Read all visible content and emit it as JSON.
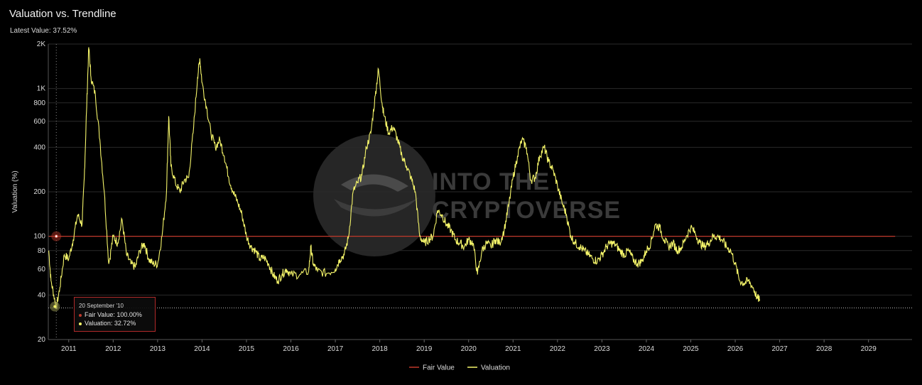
{
  "header": {
    "title": "Valuation vs. Trendline",
    "latest_value": "Latest Value: 37.52%"
  },
  "watermark": {
    "line1": "INTO THE",
    "line2": "CRYPTOVERSE"
  },
  "tooltip": {
    "date": "20 September '10",
    "fair_value": "Fair Value: 100.00%",
    "valuation": "Valuation: 32.72%"
  },
  "colors": {
    "background": "#000000",
    "fair_value": "#c0392b",
    "valuation": "#f5f56a",
    "grid": "#2a2a2a",
    "tooltip_border": "#b02a2a"
  },
  "chart_data": {
    "type": "line",
    "title": "Valuation vs. Trendline",
    "ylabel": "Valuation (%)",
    "xlabel": "",
    "yscale": "log",
    "ylim": [
      20,
      2000
    ],
    "xlim": [
      "2010-07-15",
      "2029-12-31"
    ],
    "y_ticks": [
      20,
      40,
      60,
      80,
      100,
      200,
      400,
      600,
      800,
      1000,
      2000
    ],
    "y_tick_labels": [
      "20",
      "40",
      "60",
      "80",
      "100",
      "200",
      "400",
      "600",
      "800",
      "1K",
      "2K"
    ],
    "x_ticks": [
      "2011",
      "2012",
      "2013",
      "2014",
      "2015",
      "2016",
      "2017",
      "2018",
      "2019",
      "2020",
      "2021",
      "2022",
      "2023",
      "2024",
      "2025",
      "2026",
      "2027",
      "2028",
      "2029"
    ],
    "grid": true,
    "legend_position": "bottom-center",
    "crosshair": {
      "date": "2010-09-20",
      "valuation": 32.72
    },
    "series": [
      {
        "name": "Fair Value",
        "color": "#c0392b",
        "values": [
          [
            2010.55,
            100
          ],
          [
            2029.6,
            100
          ]
        ]
      },
      {
        "name": "Valuation",
        "color": "#f5f56a",
        "values": [
          [
            2010.55,
            80
          ],
          [
            2010.6,
            50
          ],
          [
            2010.68,
            38
          ],
          [
            2010.72,
            32.7
          ],
          [
            2010.8,
            45
          ],
          [
            2010.9,
            75
          ],
          [
            2011.0,
            70
          ],
          [
            2011.1,
            95
          ],
          [
            2011.2,
            140
          ],
          [
            2011.3,
            120
          ],
          [
            2011.35,
            250
          ],
          [
            2011.4,
            700
          ],
          [
            2011.45,
            1900
          ],
          [
            2011.5,
            1200
          ],
          [
            2011.6,
            900
          ],
          [
            2011.7,
            450
          ],
          [
            2011.8,
            200
          ],
          [
            2011.9,
            65
          ],
          [
            2012.0,
            100
          ],
          [
            2012.1,
            90
          ],
          [
            2012.2,
            130
          ],
          [
            2012.3,
            75
          ],
          [
            2012.4,
            65
          ],
          [
            2012.5,
            62
          ],
          [
            2012.6,
            80
          ],
          [
            2012.7,
            90
          ],
          [
            2012.8,
            70
          ],
          [
            2012.9,
            65
          ],
          [
            2013.0,
            65
          ],
          [
            2013.1,
            100
          ],
          [
            2013.2,
            200
          ],
          [
            2013.25,
            650
          ],
          [
            2013.3,
            300
          ],
          [
            2013.4,
            230
          ],
          [
            2013.5,
            200
          ],
          [
            2013.6,
            240
          ],
          [
            2013.7,
            250
          ],
          [
            2013.8,
            500
          ],
          [
            2013.9,
            1200
          ],
          [
            2013.95,
            1600
          ],
          [
            2014.0,
            1100
          ],
          [
            2014.1,
            750
          ],
          [
            2014.2,
            500
          ],
          [
            2014.3,
            400
          ],
          [
            2014.4,
            450
          ],
          [
            2014.5,
            350
          ],
          [
            2014.6,
            250
          ],
          [
            2014.7,
            200
          ],
          [
            2014.8,
            170
          ],
          [
            2014.9,
            140
          ],
          [
            2015.0,
            100
          ],
          [
            2015.1,
            85
          ],
          [
            2015.2,
            80
          ],
          [
            2015.3,
            70
          ],
          [
            2015.4,
            72
          ],
          [
            2015.5,
            65
          ],
          [
            2015.6,
            55
          ],
          [
            2015.7,
            50
          ],
          [
            2015.8,
            55
          ],
          [
            2015.9,
            60
          ],
          [
            2016.0,
            55
          ],
          [
            2016.2,
            55
          ],
          [
            2016.4,
            58
          ],
          [
            2016.45,
            85
          ],
          [
            2016.5,
            65
          ],
          [
            2016.6,
            58
          ],
          [
            2016.8,
            56
          ],
          [
            2017.0,
            60
          ],
          [
            2017.1,
            70
          ],
          [
            2017.2,
            75
          ],
          [
            2017.3,
            100
          ],
          [
            2017.4,
            200
          ],
          [
            2017.5,
            230
          ],
          [
            2017.6,
            260
          ],
          [
            2017.7,
            400
          ],
          [
            2017.8,
            500
          ],
          [
            2017.9,
            900
          ],
          [
            2017.97,
            1350
          ],
          [
            2018.05,
            800
          ],
          [
            2018.1,
            650
          ],
          [
            2018.2,
            500
          ],
          [
            2018.3,
            550
          ],
          [
            2018.4,
            450
          ],
          [
            2018.5,
            350
          ],
          [
            2018.6,
            300
          ],
          [
            2018.7,
            250
          ],
          [
            2018.8,
            200
          ],
          [
            2018.9,
            100
          ],
          [
            2019.0,
            90
          ],
          [
            2019.1,
            95
          ],
          [
            2019.2,
            100
          ],
          [
            2019.3,
            150
          ],
          [
            2019.4,
            140
          ],
          [
            2019.5,
            120
          ],
          [
            2019.6,
            110
          ],
          [
            2019.7,
            95
          ],
          [
            2019.8,
            90
          ],
          [
            2019.9,
            85
          ],
          [
            2020.0,
            95
          ],
          [
            2020.1,
            90
          ],
          [
            2020.2,
            55
          ],
          [
            2020.3,
            80
          ],
          [
            2020.4,
            90
          ],
          [
            2020.5,
            85
          ],
          [
            2020.6,
            95
          ],
          [
            2020.7,
            90
          ],
          [
            2020.8,
            110
          ],
          [
            2020.9,
            160
          ],
          [
            2021.0,
            250
          ],
          [
            2021.1,
            350
          ],
          [
            2021.2,
            450
          ],
          [
            2021.3,
            400
          ],
          [
            2021.4,
            240
          ],
          [
            2021.5,
            250
          ],
          [
            2021.6,
            350
          ],
          [
            2021.7,
            400
          ],
          [
            2021.8,
            320
          ],
          [
            2021.9,
            280
          ],
          [
            2022.0,
            220
          ],
          [
            2022.1,
            170
          ],
          [
            2022.2,
            140
          ],
          [
            2022.3,
            100
          ],
          [
            2022.4,
            90
          ],
          [
            2022.5,
            85
          ],
          [
            2022.6,
            80
          ],
          [
            2022.7,
            75
          ],
          [
            2022.8,
            70
          ],
          [
            2022.9,
            68
          ],
          [
            2023.0,
            75
          ],
          [
            2023.1,
            85
          ],
          [
            2023.2,
            90
          ],
          [
            2023.3,
            88
          ],
          [
            2023.4,
            80
          ],
          [
            2023.5,
            75
          ],
          [
            2023.6,
            80
          ],
          [
            2023.7,
            70
          ],
          [
            2023.8,
            65
          ],
          [
            2023.9,
            68
          ],
          [
            2024.0,
            80
          ],
          [
            2024.1,
            90
          ],
          [
            2024.2,
            120
          ],
          [
            2024.3,
            115
          ],
          [
            2024.4,
            95
          ],
          [
            2024.5,
            85
          ],
          [
            2024.6,
            90
          ],
          [
            2024.7,
            80
          ],
          [
            2024.8,
            85
          ],
          [
            2024.9,
            100
          ],
          [
            2025.0,
            115
          ],
          [
            2025.1,
            105
          ],
          [
            2025.2,
            90
          ],
          [
            2025.3,
            85
          ],
          [
            2025.4,
            90
          ],
          [
            2025.5,
            100
          ],
          [
            2025.6,
            100
          ],
          [
            2025.7,
            95
          ],
          [
            2025.8,
            85
          ],
          [
            2025.9,
            80
          ],
          [
            2026.0,
            65
          ],
          [
            2026.1,
            50
          ],
          [
            2026.2,
            48
          ],
          [
            2026.3,
            50
          ],
          [
            2026.4,
            45
          ],
          [
            2026.5,
            38
          ],
          [
            2026.55,
            37.52
          ]
        ]
      }
    ]
  }
}
